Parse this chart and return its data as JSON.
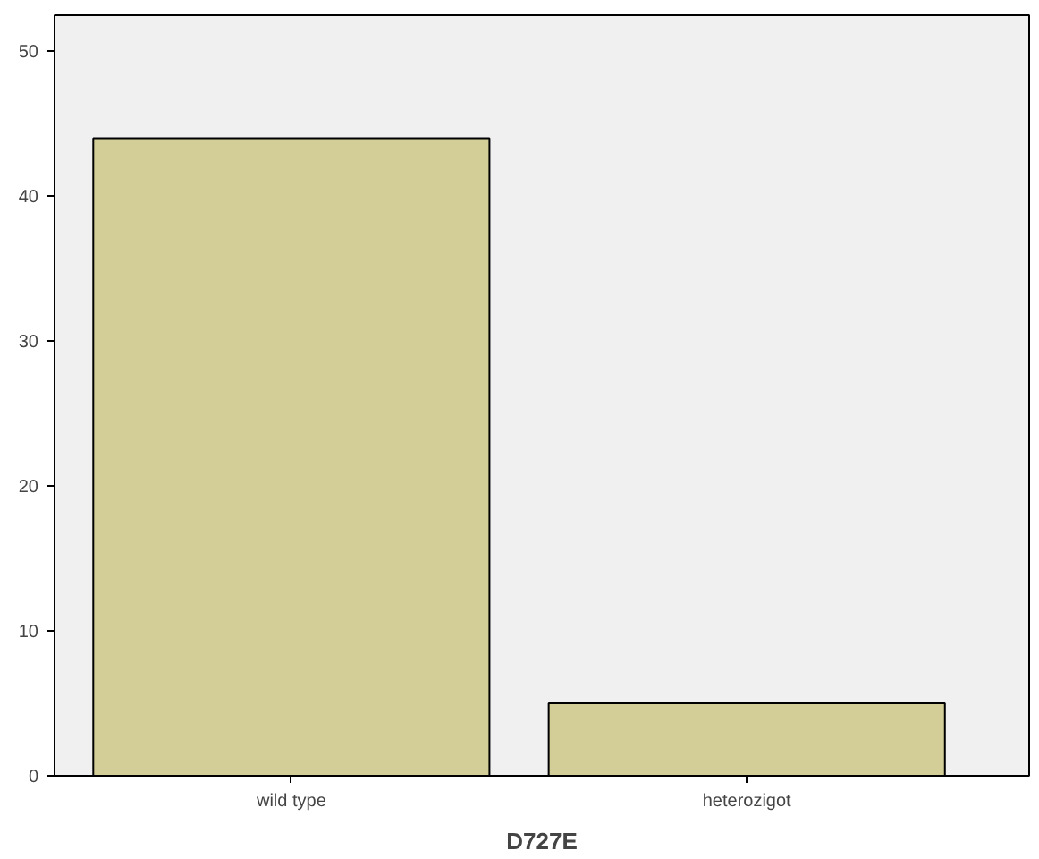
{
  "chart_data": {
    "type": "bar",
    "xlabel": "D727E",
    "categories": [
      "wild type",
      "heterozigot"
    ],
    "values": [
      44,
      5
    ],
    "color": "#d3ce97",
    "ylim": [
      0,
      52.5
    ],
    "yticks": [
      0,
      10,
      20,
      30,
      40,
      50
    ],
    "grid": false
  }
}
